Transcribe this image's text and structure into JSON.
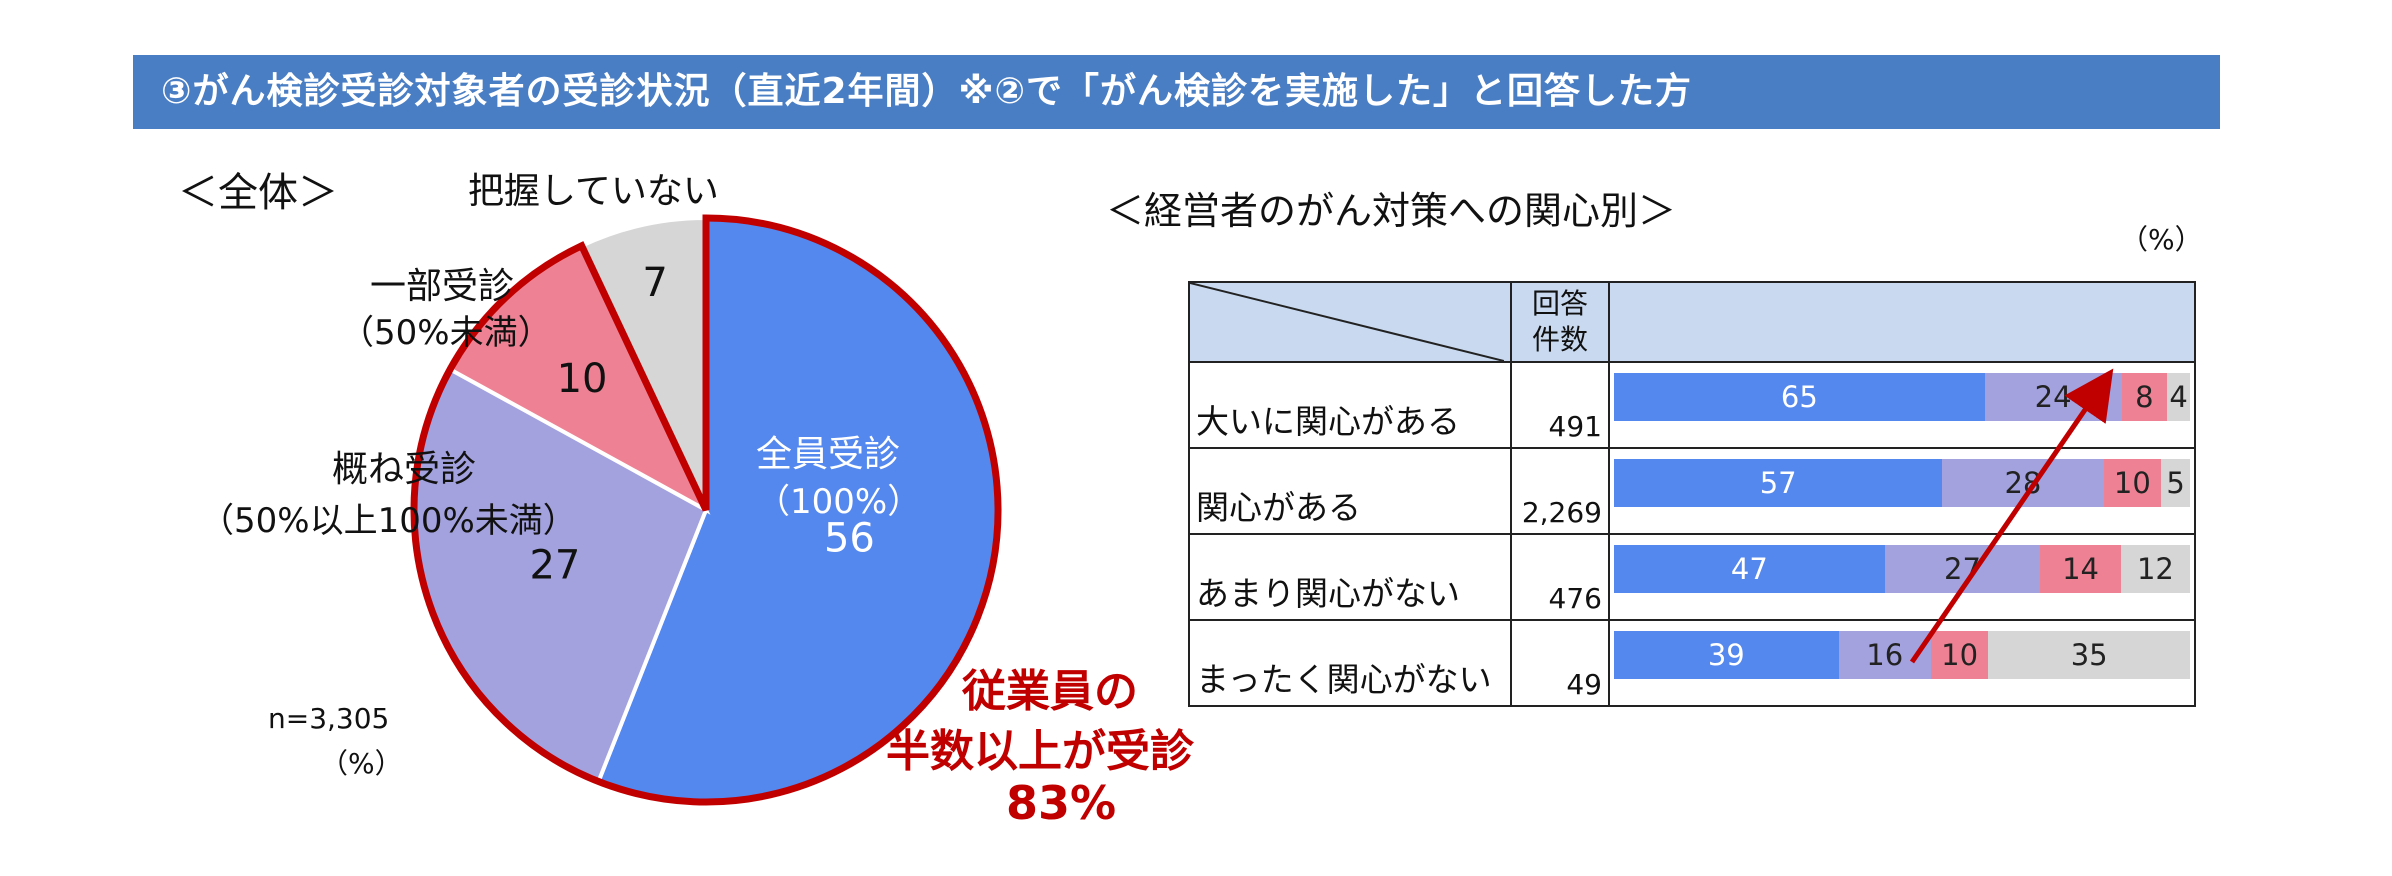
{
  "header": {
    "title": "③がん検診受診対象者の受診状況（直近2年間）※②で「がん検診を実施した」と回答した方"
  },
  "pie": {
    "section_label": "＜全体＞",
    "n_label": "n=3,305",
    "unit_label": "（%）",
    "callout": [
      "従業員の",
      "半数以上が受診",
      "83%"
    ],
    "slice_labels": {
      "full_name": "全員受診",
      "full_sub": "（100%）",
      "mostly_name": "概ね受診",
      "mostly_sub": "（50%以上100%未満）",
      "partial_name": "一部受診",
      "partial_sub": "（50%未満）",
      "unknown_name": "把握していない"
    }
  },
  "stacked": {
    "section_label": "＜経営者のがん対策への関心別＞",
    "unit_label": "（%）",
    "count_header": [
      "回答",
      "件数"
    ],
    "rows": [
      {
        "label": "大いに関心がある",
        "count": "491"
      },
      {
        "label": "関心がある",
        "count": "2,269"
      },
      {
        "label": "あまり関心がない",
        "count": "476"
      },
      {
        "label": "まったく関心がない",
        "count": "49"
      }
    ]
  },
  "colors": {
    "banner": "#4a7ec4",
    "full": "#5588ee",
    "mostly": "#a3a2df",
    "partial": "#ee8294",
    "unknown": "#d6d6d6",
    "callout": "#c00000"
  },
  "chart_data": [
    {
      "type": "pie",
      "title": "＜全体＞",
      "categories": [
        "全員受診（100%）",
        "概ね受診（50%以上100%未満）",
        "一部受診（50%未満）",
        "把握していない"
      ],
      "values": [
        56,
        27,
        10,
        7
      ]
    },
    {
      "type": "bar",
      "orientation": "horizontal",
      "stacked": true,
      "title": "＜経営者のがん対策への関心別＞",
      "categories": [
        "大いに関心がある",
        "関心がある",
        "あまり関心がない",
        "まったく関心がない"
      ],
      "counts": [
        "491",
        "2,269",
        "476",
        "49"
      ],
      "series": [
        {
          "values": [
            65,
            57,
            47,
            39
          ]
        },
        {
          "values": [
            24,
            28,
            27,
            16
          ]
        },
        {
          "values": [
            8,
            10,
            14,
            10
          ]
        },
        {
          "values": [
            4,
            5,
            12,
            35
          ]
        }
      ],
      "xlim": [
        0,
        100
      ]
    }
  ]
}
